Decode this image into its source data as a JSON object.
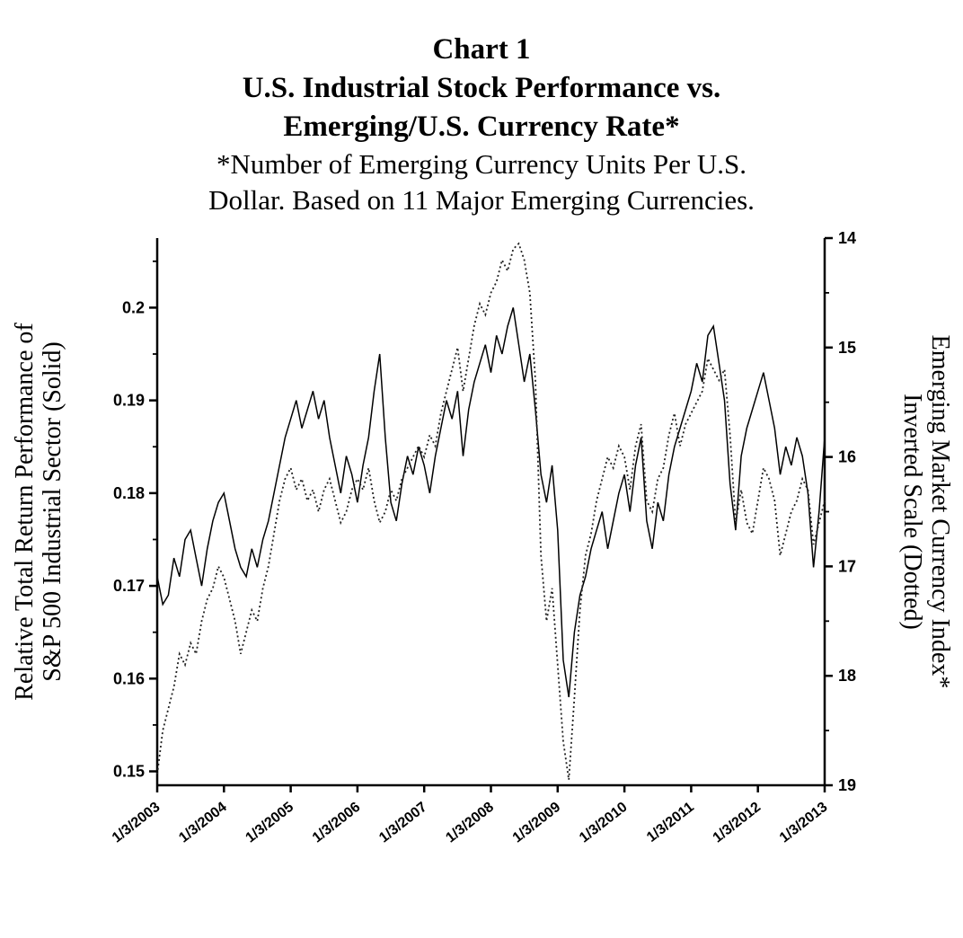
{
  "header": {
    "lines": [
      "Chart 1",
      "U.S. Industrial Stock Performance vs.",
      "Emerging/U.S. Currency Rate*",
      "*Number of Emerging Currency Units Per U.S.",
      "Dollar. Based on 11 Major Emerging Currencies."
    ]
  },
  "axes": {
    "left_title_line1": "Relative Total Return Performance of",
    "left_title_line2": "S&P 500 Industrial Sector (Solid)",
    "right_title_line1": "Emerging Market Currency Index*",
    "right_title_line2": "Inverted Scale (Dotted)"
  },
  "colors": {
    "line": "#000000",
    "dotted": "#222222",
    "background": "#ffffff"
  },
  "chart_data": {
    "type": "line",
    "title": "Chart 1 — U.S. Industrial Stock Performance vs. Emerging/U.S. Currency Rate*",
    "subtitle": "*Number of Emerging Currency Units Per U.S. Dollar. Based on 11 Major Emerging Currencies.",
    "x_tick_labels": [
      "1/3/2003",
      "1/3/2004",
      "1/3/2005",
      "1/3/2006",
      "1/3/2007",
      "1/3/2008",
      "1/3/2009",
      "1/3/2010",
      "1/3/2011",
      "1/3/2012",
      "1/3/2013"
    ],
    "x_resolution": "monthly points, Jan 2003 through Jan 2013",
    "grid": false,
    "legend": "encoded in axis titles: solid = left axis, dotted = right axis",
    "left_axis": {
      "label": "Relative Total Return Performance of S&P 500 Industrial Sector (Solid)",
      "tick_labels": [
        "0.2",
        "0.19",
        "0.18",
        "0.17",
        "0.16",
        "0.15"
      ],
      "tick_values": [
        0.2,
        0.19,
        0.18,
        0.17,
        0.16,
        0.15
      ],
      "minor_step": 0.005,
      "range": [
        0.1485,
        0.2075
      ]
    },
    "right_axis": {
      "label": "Emerging Market Currency Index* Inverted Scale (Dotted)",
      "tick_labels": [
        "14",
        "15",
        "16",
        "17",
        "18",
        "19"
      ],
      "tick_values": [
        14,
        15,
        16,
        17,
        18,
        19
      ],
      "minor_step": 0.5,
      "inverted": true,
      "range": [
        14,
        19
      ]
    },
    "series": [
      {
        "name": "Relative total return of S&P 500 Industrial Sector",
        "style": "solid",
        "axis": "left",
        "values": [
          0.171,
          0.168,
          0.169,
          0.173,
          0.171,
          0.175,
          0.176,
          0.173,
          0.17,
          0.174,
          0.177,
          0.179,
          0.18,
          0.177,
          0.174,
          0.172,
          0.171,
          0.174,
          0.172,
          0.175,
          0.177,
          0.18,
          0.183,
          0.186,
          0.188,
          0.19,
          0.187,
          0.189,
          0.191,
          0.188,
          0.19,
          0.186,
          0.183,
          0.18,
          0.184,
          0.182,
          0.179,
          0.183,
          0.186,
          0.191,
          0.195,
          0.186,
          0.179,
          0.177,
          0.181,
          0.184,
          0.182,
          0.185,
          0.183,
          0.18,
          0.184,
          0.187,
          0.19,
          0.188,
          0.191,
          0.184,
          0.189,
          0.192,
          0.194,
          0.196,
          0.193,
          0.197,
          0.195,
          0.198,
          0.2,
          0.196,
          0.192,
          0.195,
          0.189,
          0.182,
          0.179,
          0.183,
          0.176,
          0.162,
          0.158,
          0.165,
          0.169,
          0.171,
          0.174,
          0.176,
          0.178,
          0.174,
          0.177,
          0.18,
          0.182,
          0.178,
          0.183,
          0.186,
          0.177,
          0.174,
          0.179,
          0.177,
          0.182,
          0.185,
          0.187,
          0.189,
          0.191,
          0.194,
          0.192,
          0.197,
          0.198,
          0.194,
          0.19,
          0.181,
          0.176,
          0.184,
          0.187,
          0.189,
          0.191,
          0.193,
          0.19,
          0.187,
          0.182,
          0.185,
          0.183,
          0.186,
          0.184,
          0.18,
          0.172,
          0.178,
          0.186
        ]
      },
      {
        "name": "Emerging Market Currency Index (units per U.S. dollar, inverted scale)",
        "style": "dotted",
        "axis": "right",
        "values": [
          18.9,
          18.5,
          18.3,
          18.1,
          17.8,
          17.9,
          17.7,
          17.8,
          17.5,
          17.3,
          17.2,
          17.0,
          17.1,
          17.3,
          17.5,
          17.8,
          17.6,
          17.4,
          17.5,
          17.2,
          17.0,
          16.7,
          16.4,
          16.2,
          16.1,
          16.3,
          16.2,
          16.4,
          16.3,
          16.5,
          16.3,
          16.2,
          16.4,
          16.6,
          16.5,
          16.3,
          16.2,
          16.3,
          16.1,
          16.4,
          16.6,
          16.5,
          16.3,
          16.4,
          16.2,
          16.1,
          16.0,
          15.9,
          16.0,
          15.8,
          15.9,
          15.6,
          15.4,
          15.2,
          15.0,
          15.4,
          15.1,
          14.8,
          14.6,
          14.7,
          14.5,
          14.4,
          14.2,
          14.3,
          14.1,
          14.05,
          14.2,
          14.5,
          15.3,
          16.9,
          17.5,
          17.2,
          17.9,
          18.6,
          18.95,
          18.2,
          17.4,
          16.9,
          16.7,
          16.4,
          16.2,
          16.0,
          16.1,
          15.9,
          16.0,
          16.3,
          15.9,
          15.7,
          16.4,
          16.5,
          16.2,
          16.1,
          15.8,
          15.6,
          15.9,
          15.7,
          15.6,
          15.5,
          15.4,
          15.1,
          15.2,
          15.3,
          15.2,
          15.8,
          16.6,
          16.3,
          16.6,
          16.7,
          16.4,
          16.1,
          16.2,
          16.4,
          16.9,
          16.7,
          16.5,
          16.4,
          16.2,
          16.3,
          16.8,
          16.6,
          16.4
        ]
      }
    ]
  }
}
